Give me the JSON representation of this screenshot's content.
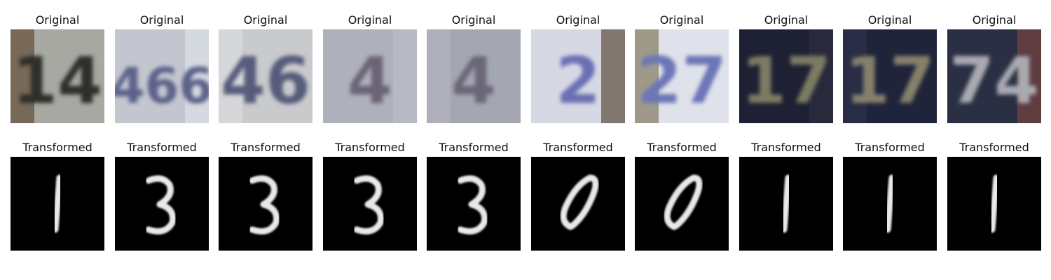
{
  "rows": [
    {
      "title": "Original",
      "images": [
        {
          "bg": "#a7a8a2",
          "fg": "#2e2f2a",
          "glyph": "14",
          "accent": "#6d5846"
        },
        {
          "bg": "#c3c6cf",
          "fg": "#5b628a",
          "glyph": "466",
          "accent": "#dadde3"
        },
        {
          "bg": "#c8cacc",
          "fg": "#565b7a",
          "glyph": "46",
          "accent": "#d9dadc"
        },
        {
          "bg": "#aeb0bb",
          "fg": "#6b6477",
          "glyph": "4",
          "accent": "#b9bcc6"
        },
        {
          "bg": "#a4a7b2",
          "fg": "#6a6878",
          "glyph": "4",
          "accent": "#b0b2bc"
        },
        {
          "bg": "#d6d8e3",
          "fg": "#6b6fb3",
          "glyph": "2",
          "accent": "#6b5e52"
        },
        {
          "bg": "#dfe2ea",
          "fg": "#6c76b8",
          "glyph": "27",
          "accent": "#8e8772"
        },
        {
          "bg": "#1e2133",
          "fg": "#7b7b63",
          "glyph": "17",
          "accent": "#2a2d3f"
        },
        {
          "bg": "#20243a",
          "fg": "#85806a",
          "glyph": "17",
          "accent": "#2c3048"
        },
        {
          "bg": "#2a2f44",
          "fg": "#a9aab0",
          "glyph": "74",
          "accent": "#6b4040"
        }
      ]
    },
    {
      "title": "Transformed",
      "images": [
        {
          "bg": "#000000",
          "fg": "#e8e8e8",
          "glyph": "1"
        },
        {
          "bg": "#000000",
          "fg": "#e8e8e8",
          "glyph": "3"
        },
        {
          "bg": "#000000",
          "fg": "#e8e8e8",
          "glyph": "3"
        },
        {
          "bg": "#000000",
          "fg": "#e8e8e8",
          "glyph": "3"
        },
        {
          "bg": "#000000",
          "fg": "#e8e8e8",
          "glyph": "3"
        },
        {
          "bg": "#000000",
          "fg": "#e8e8e8",
          "glyph": "0"
        },
        {
          "bg": "#000000",
          "fg": "#e8e8e8",
          "glyph": "0"
        },
        {
          "bg": "#000000",
          "fg": "#e8e8e8",
          "glyph": "1"
        },
        {
          "bg": "#000000",
          "fg": "#e8e8e8",
          "glyph": "1"
        },
        {
          "bg": "#000000",
          "fg": "#e8e8e8",
          "glyph": "1"
        }
      ]
    }
  ]
}
